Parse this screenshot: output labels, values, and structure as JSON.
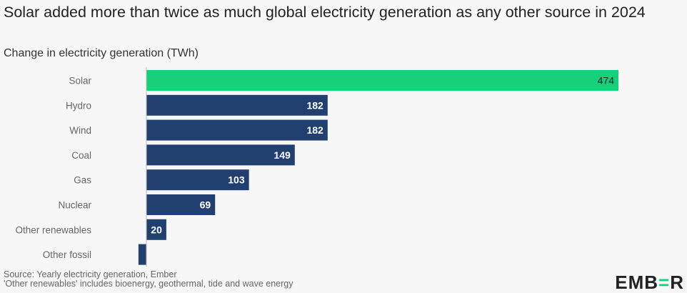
{
  "title": "Solar added more than twice as much global electricity generation as any other source in 2024",
  "subtitle": "Change in electricity generation (TWh)",
  "footer": {
    "source": "Source: Yearly electricity generation, Ember",
    "note": "'Other renewables' includes bioenergy, geothermal, tide and wave energy"
  },
  "logo": "EMBER",
  "chart_data": {
    "type": "bar",
    "orientation": "horizontal",
    "title": "Solar added more than twice as much global electricity generation as any other source in 2024",
    "subtitle": "Change in electricity generation (TWh)",
    "categories": [
      "Solar",
      "Hydro",
      "Wind",
      "Coal",
      "Gas",
      "Nuclear",
      "Other renewables",
      "Other fossil"
    ],
    "values": [
      474,
      182,
      182,
      149,
      103,
      69,
      20,
      -8
    ],
    "data_labels": [
      "474",
      "182",
      "182",
      "149",
      "103",
      "69",
      "20",
      ""
    ],
    "colors": [
      "#16d07a",
      "#213f6f",
      "#213f6f",
      "#213f6f",
      "#213f6f",
      "#213f6f",
      "#213f6f",
      "#213f6f"
    ],
    "grid": false
  }
}
